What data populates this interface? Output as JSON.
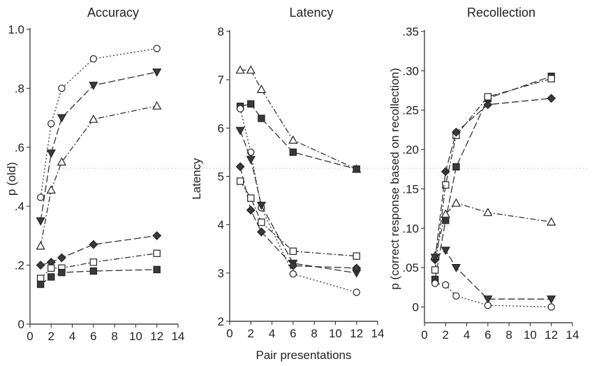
{
  "figure": {
    "shared_xlabel": "Pair presentations"
  },
  "chart_data": [
    {
      "type": "line",
      "title": "Accuracy",
      "xlabel": "",
      "ylabel": "p (old)",
      "xlim": [
        0,
        14
      ],
      "ylim": [
        0,
        1.0
      ],
      "x_ticks": [
        0,
        2,
        4,
        6,
        8,
        10,
        12,
        14
      ],
      "x_tick_labels": [
        "0",
        "2",
        "4",
        "6",
        "8",
        "10",
        "12",
        "14"
      ],
      "y_ticks": [
        0,
        0.2,
        0.4,
        0.6,
        0.8,
        1.0
      ],
      "y_tick_labels": [
        "0",
        ".2",
        ".4",
        ".6",
        ".8",
        "1.0"
      ],
      "series": [
        {
          "marker": "circle-open",
          "dash": "dotted",
          "x": [
            1,
            2,
            3,
            6,
            12
          ],
          "y": [
            0.43,
            0.68,
            0.8,
            0.9,
            0.935
          ]
        },
        {
          "marker": "triangle-down-filled",
          "dash": "longdash",
          "x": [
            1,
            2,
            3,
            6,
            12
          ],
          "y": [
            0.35,
            0.58,
            0.7,
            0.81,
            0.855
          ]
        },
        {
          "marker": "triangle-up-open",
          "dash": "dashdot",
          "x": [
            1,
            2,
            3,
            6,
            12
          ],
          "y": [
            0.265,
            0.455,
            0.55,
            0.695,
            0.74
          ]
        },
        {
          "marker": "diamond-filled",
          "dash": "longdash",
          "x": [
            1,
            2,
            3,
            6,
            12
          ],
          "y": [
            0.2,
            0.21,
            0.225,
            0.27,
            0.3
          ]
        },
        {
          "marker": "square-open",
          "dash": "dashdot",
          "x": [
            1,
            2,
            3,
            6,
            12
          ],
          "y": [
            0.155,
            0.19,
            0.19,
            0.21,
            0.24
          ]
        },
        {
          "marker": "square-filled",
          "dash": "longdash",
          "x": [
            1,
            2,
            3,
            6,
            12
          ],
          "y": [
            0.135,
            0.16,
            0.175,
            0.18,
            0.185
          ]
        }
      ]
    },
    {
      "type": "line",
      "title": "Latency",
      "xlabel": "",
      "ylabel": "Latency",
      "xlim": [
        0,
        14
      ],
      "ylim": [
        2,
        8
      ],
      "x_ticks": [
        0,
        2,
        4,
        6,
        8,
        10,
        12,
        14
      ],
      "x_tick_labels": [
        "0",
        "2",
        "4",
        "6",
        "8",
        "10",
        "12",
        "14"
      ],
      "y_ticks": [
        2,
        3,
        4,
        5,
        6,
        7,
        8
      ],
      "y_tick_labels": [
        "2",
        "3",
        "4",
        "5",
        "6",
        "7",
        "8"
      ],
      "series": [
        {
          "marker": "triangle-up-open",
          "dash": "dashdot",
          "x": [
            1,
            2,
            3,
            6,
            12
          ],
          "y": [
            7.2,
            7.2,
            6.8,
            5.75,
            5.15
          ]
        },
        {
          "marker": "square-filled",
          "dash": "longdash",
          "x": [
            1,
            2,
            3,
            6,
            12
          ],
          "y": [
            6.45,
            6.5,
            6.2,
            5.5,
            5.15
          ]
        },
        {
          "marker": "circle-open",
          "dash": "dotted",
          "x": [
            1,
            2,
            3,
            6,
            12
          ],
          "y": [
            6.4,
            5.5,
            4.35,
            2.98,
            2.6
          ]
        },
        {
          "marker": "triangle-down-filled",
          "dash": "longdash",
          "x": [
            1,
            2,
            3,
            6,
            12
          ],
          "y": [
            5.95,
            5.35,
            4.4,
            3.2,
            3.0
          ]
        },
        {
          "marker": "diamond-filled",
          "dash": "longdash",
          "x": [
            1,
            2,
            3,
            6,
            12
          ],
          "y": [
            5.2,
            4.3,
            3.85,
            3.15,
            3.1
          ]
        },
        {
          "marker": "square-open",
          "dash": "dashdot",
          "x": [
            1,
            2,
            3,
            6,
            12
          ],
          "y": [
            4.9,
            4.55,
            4.05,
            3.45,
            3.35
          ]
        }
      ]
    },
    {
      "type": "line",
      "title": "Recollection",
      "xlabel": "",
      "ylabel": "p (correct response based on recollection)",
      "xlim": [
        0,
        14
      ],
      "ylim": [
        -0.02,
        0.35
      ],
      "x_ticks": [
        0,
        2,
        4,
        6,
        8,
        10,
        12,
        14
      ],
      "x_tick_labels": [
        "0",
        "2",
        "4",
        "6",
        "8",
        "10",
        "12",
        "14"
      ],
      "y_ticks": [
        0,
        0.05,
        0.1,
        0.15,
        0.2,
        0.25,
        0.3,
        0.35
      ],
      "y_tick_labels": [
        "0",
        ".05",
        ".10",
        ".15",
        ".20",
        ".25",
        ".30",
        ".35"
      ],
      "series": [
        {
          "marker": "square-filled",
          "dash": "longdash",
          "x": [
            1,
            2,
            3,
            6,
            12
          ],
          "y": [
            0.035,
            0.11,
            0.178,
            0.265,
            0.293
          ]
        },
        {
          "marker": "square-open",
          "dash": "dashdot",
          "x": [
            1,
            2,
            3,
            6,
            12
          ],
          "y": [
            0.047,
            0.155,
            0.218,
            0.267,
            0.29
          ]
        },
        {
          "marker": "diamond-filled",
          "dash": "longdash",
          "x": [
            1,
            2,
            3,
            6,
            12
          ],
          "y": [
            0.06,
            0.172,
            0.222,
            0.257,
            0.265
          ]
        },
        {
          "marker": "triangle-up-open",
          "dash": "dashdot",
          "x": [
            1,
            2,
            3,
            6,
            12
          ],
          "y": [
            0.065,
            0.118,
            0.132,
            0.12,
            0.108
          ]
        },
        {
          "marker": "triangle-down-filled",
          "dash": "longdash",
          "x": [
            1,
            2,
            3,
            6,
            12
          ],
          "y": [
            0.063,
            0.072,
            0.05,
            0.01,
            0.01
          ]
        },
        {
          "marker": "circle-open",
          "dash": "dotted",
          "x": [
            1,
            2,
            3,
            6,
            12
          ],
          "y": [
            0.03,
            0.028,
            0.014,
            0.002,
            0.0
          ]
        }
      ]
    }
  ]
}
